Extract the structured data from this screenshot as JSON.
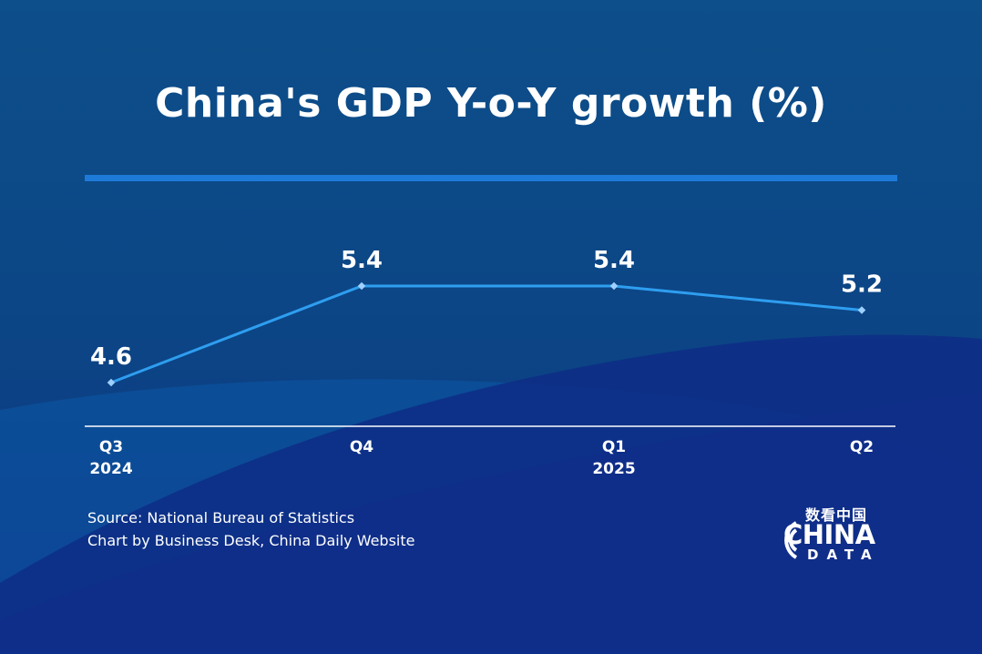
{
  "title": "China's GDP Y-o-Y growth (%)",
  "source": "Source: National Bureau of Statistics",
  "credit": "Chart by Business Desk, China Daily Website",
  "logo": {
    "chinese": "数看中国",
    "main": "CHINA",
    "sub": "DATA"
  },
  "colors": {
    "line": "#2e9ef0",
    "point": "#9fd0ff",
    "axis": "#ffffff",
    "accent_rule": "#1e7ad8"
  },
  "chart_data": {
    "type": "line",
    "title": "China's GDP Y-o-Y growth (%)",
    "xlabel": "",
    "ylabel": "",
    "categories": [
      [
        "Q3",
        "2024"
      ],
      [
        "Q4"
      ],
      [
        "Q1",
        "2025"
      ],
      [
        "Q2"
      ]
    ],
    "series": [
      {
        "values": [
          4.6,
          5.4,
          5.4,
          5.2
        ]
      }
    ],
    "data_labels": [
      "4.6",
      "5.4",
      "5.4",
      "5.2"
    ],
    "grid": false,
    "legend": "none"
  }
}
